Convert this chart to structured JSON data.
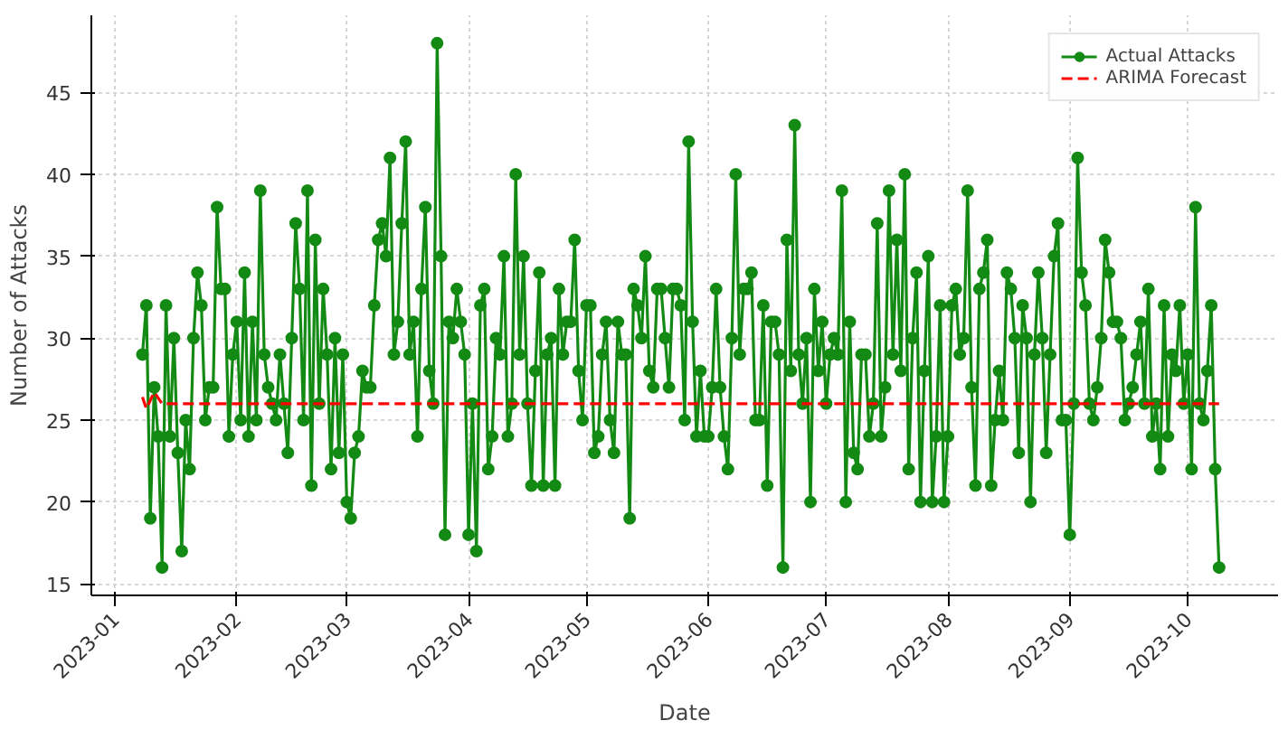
{
  "chart_data": {
    "type": "line",
    "xlabel": "Date",
    "ylabel": "Number of Attacks",
    "x": [
      "2023-01-08",
      "2023-01-09",
      "2023-01-10",
      "2023-01-11",
      "2023-01-12",
      "2023-01-13",
      "2023-01-14",
      "2023-01-15",
      "2023-01-16",
      "2023-01-17",
      "2023-01-18",
      "2023-01-19",
      "2023-01-20",
      "2023-01-21",
      "2023-01-22",
      "2023-01-23",
      "2023-01-24",
      "2023-01-25",
      "2023-01-26",
      "2023-01-27",
      "2023-01-28",
      "2023-01-29",
      "2023-01-30",
      "2023-01-31",
      "2023-02-01",
      "2023-02-02",
      "2023-02-03",
      "2023-02-04",
      "2023-02-05",
      "2023-02-06",
      "2023-02-07",
      "2023-02-08",
      "2023-02-09",
      "2023-02-10",
      "2023-02-11",
      "2023-02-12",
      "2023-02-13",
      "2023-02-14",
      "2023-02-15",
      "2023-02-16",
      "2023-02-17",
      "2023-02-18",
      "2023-02-19",
      "2023-02-20",
      "2023-02-21",
      "2023-02-22",
      "2023-02-23",
      "2023-02-24",
      "2023-02-25",
      "2023-02-26",
      "2023-02-27",
      "2023-02-28",
      "2023-03-01",
      "2023-03-02",
      "2023-03-03",
      "2023-03-04",
      "2023-03-05",
      "2023-03-06",
      "2023-03-07",
      "2023-03-08",
      "2023-03-09",
      "2023-03-10",
      "2023-03-11",
      "2023-03-12",
      "2023-03-13",
      "2023-03-14",
      "2023-03-15",
      "2023-03-16",
      "2023-03-17",
      "2023-03-18",
      "2023-03-19",
      "2023-03-20",
      "2023-03-21",
      "2023-03-22",
      "2023-03-23",
      "2023-03-24",
      "2023-03-25",
      "2023-03-26",
      "2023-03-27",
      "2023-03-28",
      "2023-03-29",
      "2023-03-30",
      "2023-03-31",
      "2023-04-01",
      "2023-04-02",
      "2023-04-03",
      "2023-04-04",
      "2023-04-05",
      "2023-04-06",
      "2023-04-07",
      "2023-04-08",
      "2023-04-09",
      "2023-04-10",
      "2023-04-11",
      "2023-04-12",
      "2023-04-13",
      "2023-04-14",
      "2023-04-15",
      "2023-04-16",
      "2023-04-17",
      "2023-04-18",
      "2023-04-19",
      "2023-04-20",
      "2023-04-21",
      "2023-04-22",
      "2023-04-23",
      "2023-04-24",
      "2023-04-25",
      "2023-04-26",
      "2023-04-27",
      "2023-04-28",
      "2023-04-29",
      "2023-04-30",
      "2023-05-01",
      "2023-05-02",
      "2023-05-03",
      "2023-05-04",
      "2023-05-05",
      "2023-05-06",
      "2023-05-07",
      "2023-05-08",
      "2023-05-09",
      "2023-05-10",
      "2023-05-11",
      "2023-05-12",
      "2023-05-13",
      "2023-05-14",
      "2023-05-15",
      "2023-05-16",
      "2023-05-17",
      "2023-05-18",
      "2023-05-19",
      "2023-05-20",
      "2023-05-21",
      "2023-05-22",
      "2023-05-23",
      "2023-05-24",
      "2023-05-25",
      "2023-05-26",
      "2023-05-27",
      "2023-05-28",
      "2023-05-29",
      "2023-05-30",
      "2023-05-31",
      "2023-06-01",
      "2023-06-02",
      "2023-06-03",
      "2023-06-04",
      "2023-06-05",
      "2023-06-06",
      "2023-06-07",
      "2023-06-08",
      "2023-06-09",
      "2023-06-10",
      "2023-06-11",
      "2023-06-12",
      "2023-06-13",
      "2023-06-14",
      "2023-06-15",
      "2023-06-16",
      "2023-06-17",
      "2023-06-18",
      "2023-06-19",
      "2023-06-20",
      "2023-06-21",
      "2023-06-22",
      "2023-06-23",
      "2023-06-24",
      "2023-06-25",
      "2023-06-26",
      "2023-06-27",
      "2023-06-28",
      "2023-06-29",
      "2023-06-30",
      "2023-07-01",
      "2023-07-02",
      "2023-07-03",
      "2023-07-04",
      "2023-07-05",
      "2023-07-06",
      "2023-07-07",
      "2023-07-08",
      "2023-07-09",
      "2023-07-10",
      "2023-07-11",
      "2023-07-12",
      "2023-07-13",
      "2023-07-14",
      "2023-07-15",
      "2023-07-16",
      "2023-07-17",
      "2023-07-18",
      "2023-07-19",
      "2023-07-20",
      "2023-07-21",
      "2023-07-22",
      "2023-07-23",
      "2023-07-24",
      "2023-07-25",
      "2023-07-26",
      "2023-07-27",
      "2023-07-28",
      "2023-07-29",
      "2023-07-30",
      "2023-07-31",
      "2023-08-01",
      "2023-08-02",
      "2023-08-03",
      "2023-08-04",
      "2023-08-05",
      "2023-08-06",
      "2023-08-07",
      "2023-08-08",
      "2023-08-09",
      "2023-08-10",
      "2023-08-11",
      "2023-08-12",
      "2023-08-13",
      "2023-08-14",
      "2023-08-15",
      "2023-08-16",
      "2023-08-17",
      "2023-08-18",
      "2023-08-19",
      "2023-08-20",
      "2023-08-21",
      "2023-08-22",
      "2023-08-23",
      "2023-08-24",
      "2023-08-25",
      "2023-08-26",
      "2023-08-27",
      "2023-08-28",
      "2023-08-29",
      "2023-08-30",
      "2023-08-31",
      "2023-09-01",
      "2023-09-02",
      "2023-09-03",
      "2023-09-04",
      "2023-09-05",
      "2023-09-06",
      "2023-09-07",
      "2023-09-08",
      "2023-09-09",
      "2023-09-10",
      "2023-09-11",
      "2023-09-12",
      "2023-09-13",
      "2023-09-14",
      "2023-09-15",
      "2023-09-16",
      "2023-09-17",
      "2023-09-18",
      "2023-09-19",
      "2023-09-20",
      "2023-09-21",
      "2023-09-22",
      "2023-09-23",
      "2023-09-24",
      "2023-09-25",
      "2023-09-26",
      "2023-09-27",
      "2023-09-28",
      "2023-09-29",
      "2023-09-30",
      "2023-10-01",
      "2023-10-02",
      "2023-10-03",
      "2023-10-04",
      "2023-10-05",
      "2023-10-06",
      "2023-10-07",
      "2023-10-08",
      "2023-10-09"
    ],
    "series": [
      {
        "name": "Actual Attacks",
        "color": "#138a13",
        "marker": "circle",
        "line_style": "solid",
        "values": [
          29,
          32,
          19,
          27,
          24,
          16,
          32,
          24,
          30,
          23,
          17,
          25,
          22,
          30,
          34,
          32,
          25,
          27,
          27,
          38,
          33,
          33,
          24,
          29,
          31,
          25,
          34,
          24,
          31,
          25,
          39,
          29,
          27,
          26,
          25,
          29,
          26,
          23,
          30,
          37,
          33,
          25,
          39,
          21,
          36,
          26,
          33,
          29,
          22,
          30,
          23,
          29,
          20,
          19,
          23,
          24,
          28,
          27,
          27,
          32,
          36,
          37,
          35,
          41,
          29,
          31,
          37,
          42,
          29,
          31,
          24,
          33,
          38,
          28,
          26,
          48,
          35,
          18,
          31,
          30,
          33,
          31,
          29,
          18,
          26,
          17,
          32,
          33,
          22,
          24,
          30,
          29,
          35,
          24,
          26,
          40,
          29,
          35,
          26,
          21,
          28,
          34,
          21,
          29,
          30,
          21,
          33,
          29,
          31,
          31,
          36,
          28,
          25,
          32,
          32,
          23,
          24,
          29,
          31,
          25,
          23,
          31,
          29,
          29,
          19,
          33,
          32,
          30,
          35,
          28,
          27,
          33,
          33,
          30,
          27,
          33,
          33,
          32,
          25,
          42,
          31,
          24,
          28,
          24,
          24,
          27,
          33,
          27,
          24,
          22,
          30,
          40,
          29,
          33,
          33,
          34,
          25,
          25,
          32,
          21,
          31,
          31,
          29,
          16,
          36,
          28,
          43,
          29,
          26,
          30,
          20,
          33,
          28,
          31,
          26,
          29,
          30,
          29,
          39,
          20,
          31,
          23,
          22,
          29,
          29,
          24,
          26,
          37,
          24,
          27,
          39,
          29,
          36,
          28,
          40,
          22,
          30,
          34,
          20,
          28,
          35,
          20,
          24,
          32,
          20,
          24,
          32,
          33,
          29,
          30,
          39,
          27,
          21,
          33,
          34,
          36,
          21,
          25,
          28,
          25,
          34,
          33,
          30,
          23,
          32,
          30,
          20,
          29,
          34,
          30,
          23,
          29,
          35,
          37,
          25,
          25,
          18,
          26,
          41,
          34,
          32,
          26,
          25,
          27,
          30,
          36,
          34,
          31,
          31,
          30,
          25,
          26,
          27,
          29,
          31,
          26,
          33,
          24,
          26,
          22,
          32,
          24,
          29,
          28,
          32,
          26,
          29,
          22,
          38,
          26,
          25,
          28,
          32,
          22,
          16
        ]
      },
      {
        "name": "ARIMA Forecast",
        "color": "#ff0000",
        "marker": "none",
        "line_style": "dashed",
        "x": [
          "2023-01-08",
          "2023-01-09",
          "2023-01-11",
          "2023-01-13",
          "2023-10-09"
        ],
        "values": [
          26.4,
          25.7,
          26.7,
          26.0,
          26.0
        ]
      }
    ],
    "xlim": [
      "2022-12-26",
      "2023-10-24"
    ],
    "xticks": [
      "2023-01",
      "2023-02",
      "2023-03",
      "2023-04",
      "2023-05",
      "2023-06",
      "2023-07",
      "2023-08",
      "2023-09",
      "2023-10"
    ],
    "ylim": [
      14.3,
      49.7
    ],
    "yticks": [
      15,
      20,
      25,
      30,
      35,
      40,
      45
    ],
    "grid": true,
    "legend": "top right"
  }
}
